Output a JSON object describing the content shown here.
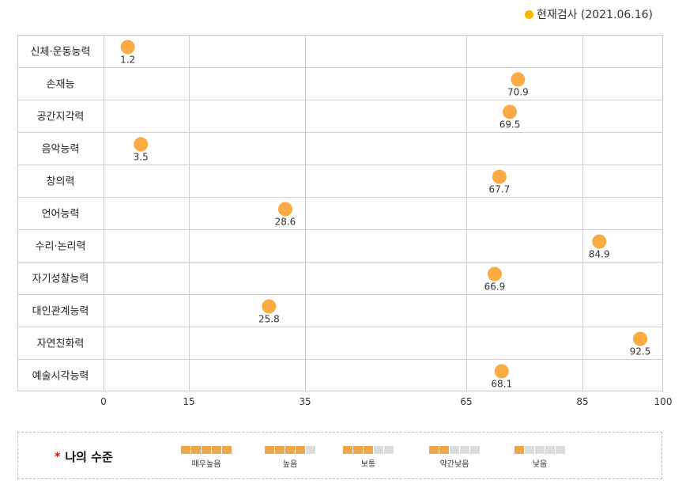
{
  "legend": {
    "label": "현재검사 (2021.06.16)",
    "color": "#ffb400"
  },
  "chart_data": {
    "type": "scatter",
    "categories": [
      "신체·운동능력",
      "손재능",
      "공간지각력",
      "음악능력",
      "창의력",
      "언어능력",
      "수리·논리력",
      "자기성찰능력",
      "대인관계능력",
      "자연친화력",
      "예술시각능력"
    ],
    "values": [
      1.2,
      70.9,
      69.5,
      3.5,
      67.7,
      28.6,
      84.9,
      66.9,
      25.8,
      92.5,
      68.1
    ],
    "value_labels": [
      "1.2",
      "70.9",
      "69.5",
      "3.5",
      "67.7",
      "28.6",
      "84.9",
      "66.9",
      "25.8",
      "92.5",
      "68.1"
    ],
    "series": [
      {
        "name": "현재검사 (2021.06.16)",
        "values": [
          1.2,
          70.9,
          69.5,
          3.5,
          67.7,
          28.6,
          84.9,
          66.9,
          25.8,
          92.5,
          68.1
        ]
      }
    ],
    "x_ticks": [
      0,
      15,
      35,
      65,
      85,
      100
    ],
    "x_tick_labels": [
      "0",
      "15",
      "35",
      "65",
      "85",
      "100"
    ],
    "xlim": [
      0,
      100
    ],
    "grid": true,
    "point_color": "#fbab43"
  },
  "level_legend": {
    "title": "나의 수준",
    "active_color": "#f0a64a",
    "inactive_color": "#dcdcdc",
    "items": [
      {
        "label": "매우높음",
        "filled": 5
      },
      {
        "label": "높음",
        "filled": 4
      },
      {
        "label": "보통",
        "filled": 3
      },
      {
        "label": "약간낮음",
        "filled": 2
      },
      {
        "label": "낮음",
        "filled": 1
      }
    ]
  }
}
